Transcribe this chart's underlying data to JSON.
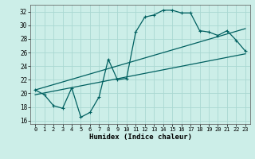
{
  "title": "",
  "xlabel": "Humidex (Indice chaleur)",
  "ylabel": "",
  "background_color": "#cceee8",
  "grid_color": "#aad8d2",
  "line_color": "#006060",
  "xlim": [
    -0.5,
    23.5
  ],
  "ylim": [
    15.5,
    33.0
  ],
  "yticks": [
    16,
    18,
    20,
    22,
    24,
    26,
    28,
    30,
    32
  ],
  "xticks": [
    0,
    1,
    2,
    3,
    4,
    5,
    6,
    7,
    8,
    9,
    10,
    11,
    12,
    13,
    14,
    15,
    16,
    17,
    18,
    19,
    20,
    21,
    22,
    23
  ],
  "series1_x": [
    0,
    1,
    2,
    3,
    4,
    5,
    6,
    7,
    8,
    9,
    10,
    11,
    12,
    13,
    14,
    15,
    16,
    17,
    18,
    19,
    20,
    21,
    22,
    23
  ],
  "series1_y": [
    20.5,
    19.8,
    18.2,
    17.8,
    20.8,
    16.5,
    17.2,
    19.5,
    25.0,
    22.0,
    22.2,
    29.0,
    31.2,
    31.5,
    32.2,
    32.2,
    31.8,
    31.8,
    29.2,
    29.0,
    28.5,
    29.2,
    27.8,
    26.2
  ],
  "series2_x": [
    0,
    23
  ],
  "series2_y": [
    19.8,
    25.8
  ],
  "series3_x": [
    0,
    23
  ],
  "series3_y": [
    20.5,
    29.5
  ]
}
